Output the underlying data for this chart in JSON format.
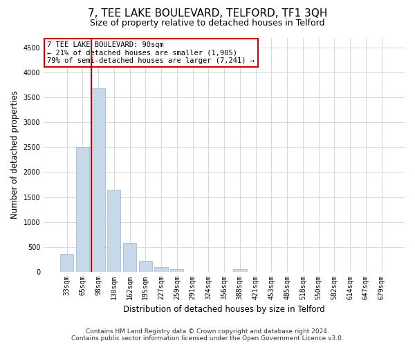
{
  "title_line1": "7, TEE LAKE BOULEVARD, TELFORD, TF1 3QH",
  "title_line2": "Size of property relative to detached houses in Telford",
  "xlabel": "Distribution of detached houses by size in Telford",
  "ylabel": "Number of detached properties",
  "categories": [
    "33sqm",
    "65sqm",
    "98sqm",
    "130sqm",
    "162sqm",
    "195sqm",
    "227sqm",
    "259sqm",
    "291sqm",
    "324sqm",
    "356sqm",
    "388sqm",
    "421sqm",
    "453sqm",
    "485sqm",
    "518sqm",
    "550sqm",
    "582sqm",
    "614sqm",
    "647sqm",
    "679sqm"
  ],
  "values": [
    350,
    2500,
    3680,
    1640,
    570,
    215,
    90,
    55,
    0,
    0,
    0,
    55,
    0,
    0,
    0,
    0,
    0,
    0,
    0,
    0,
    0
  ],
  "bar_color": "#c8d8eb",
  "bar_edge_color": "#9ab4cc",
  "highlight_line_color": "#cc0000",
  "annotation_text": "7 TEE LAKE BOULEVARD: 90sqm\n← 21% of detached houses are smaller (1,905)\n79% of semi-detached houses are larger (7,241) →",
  "annotation_box_color": "#ffffff",
  "annotation_box_edge_color": "#cc0000",
  "ylim": [
    0,
    4700
  ],
  "yticks": [
    0,
    500,
    1000,
    1500,
    2000,
    2500,
    3000,
    3500,
    4000,
    4500
  ],
  "footer_line1": "Contains HM Land Registry data © Crown copyright and database right 2024.",
  "footer_line2": "Contains public sector information licensed under the Open Government Licence v3.0.",
  "background_color": "#ffffff",
  "plot_background_color": "#ffffff",
  "grid_color": "#d0d8e8",
  "title_fontsize": 11,
  "subtitle_fontsize": 9,
  "axis_label_fontsize": 8.5,
  "tick_fontsize": 7,
  "footer_fontsize": 6.5,
  "highlight_bar_index": 2
}
